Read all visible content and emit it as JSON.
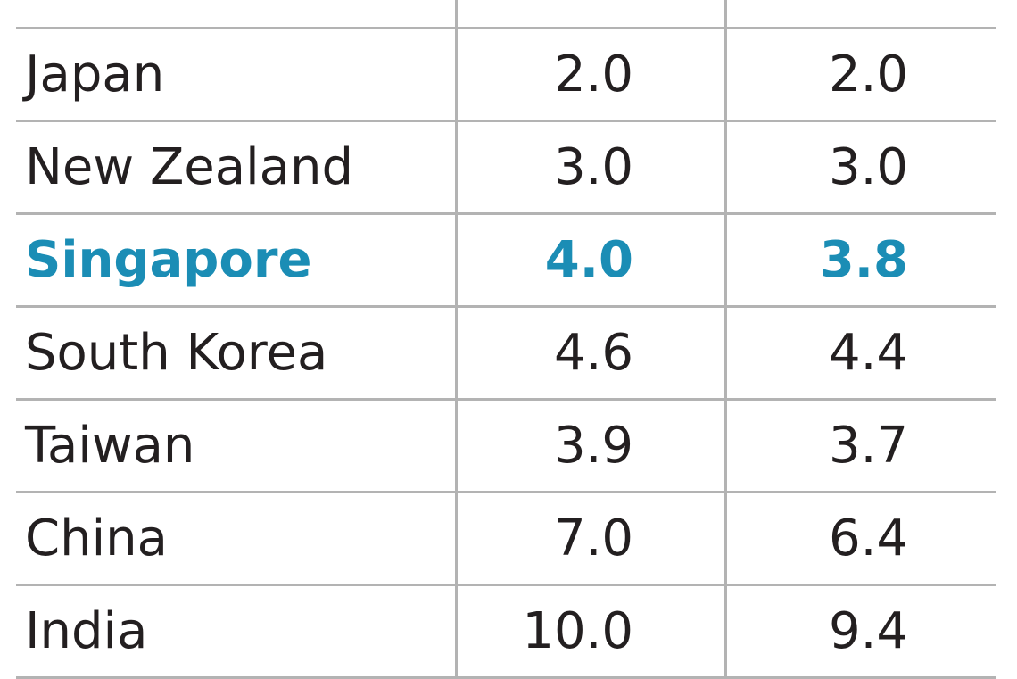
{
  "table": {
    "rows": [
      [
        "Japan",
        "2.0",
        "2.0"
      ],
      [
        "New Zealand",
        "3.0",
        "3.0"
      ],
      [
        "Singapore",
        "4.0",
        "3.8"
      ],
      [
        "South Korea",
        "4.6",
        "4.4"
      ],
      [
        "Taiwan",
        "3.9",
        "3.7"
      ],
      [
        "China",
        "7.0",
        "6.4"
      ],
      [
        "India",
        "10.0",
        "9.4"
      ]
    ]
  }
}
